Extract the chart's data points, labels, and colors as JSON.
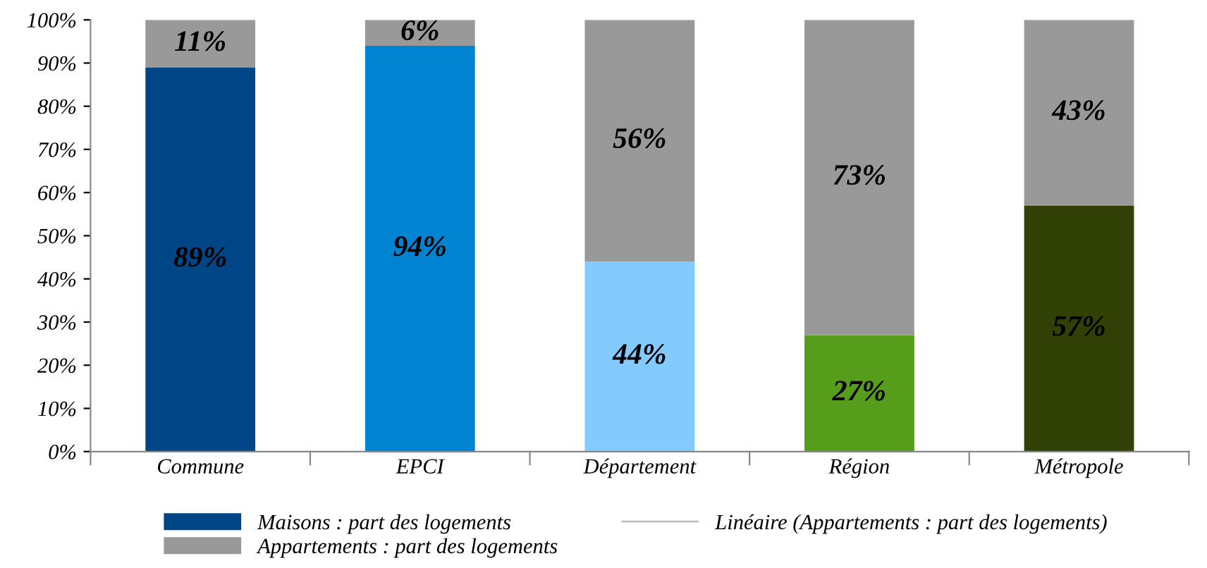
{
  "chart_data": {
    "type": "bar",
    "stacked": true,
    "categories": [
      "Commune",
      "EPCI",
      "Département",
      "Région",
      "Métropole"
    ],
    "series": [
      {
        "name": "Maisons : part des logements",
        "color": "#004586",
        "colors": [
          "#004586",
          "#0084d1",
          "#83caff",
          "#579d1c",
          "#314004"
        ],
        "values": [
          89,
          94,
          44,
          27,
          57
        ],
        "value_labels": [
          "89%",
          "94%",
          "44%",
          "27%",
          "57%"
        ]
      },
      {
        "name": "Appartements : part des logements",
        "color": "#999999",
        "values": [
          11,
          6,
          56,
          73,
          43
        ],
        "value_labels": [
          "11%",
          "6%",
          "56%",
          "73%",
          "43%"
        ]
      },
      {
        "name": "Linéaire (Appartements : part des logements)",
        "type": "line",
        "color": "#c0c0c0",
        "values": [
          null,
          null,
          null,
          null,
          null
        ]
      }
    ],
    "ylim": [
      0,
      100
    ],
    "yticks": [
      {
        "value": 0,
        "label": "0%"
      },
      {
        "value": 10,
        "label": "10%"
      },
      {
        "value": 20,
        "label": "20%"
      },
      {
        "value": 30,
        "label": "30%"
      },
      {
        "value": 40,
        "label": "40%"
      },
      {
        "value": 50,
        "label": "50%"
      },
      {
        "value": 60,
        "label": "60%"
      },
      {
        "value": 70,
        "label": "70%"
      },
      {
        "value": 80,
        "label": "80%"
      },
      {
        "value": 90,
        "label": "90%"
      },
      {
        "value": 100,
        "label": "100%"
      }
    ],
    "grid": false,
    "legend": "bottom"
  }
}
